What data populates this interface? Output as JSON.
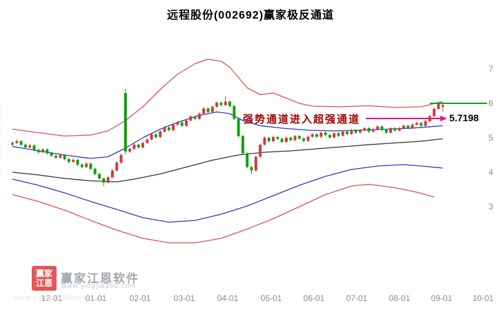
{
  "title": "远程股份(002692)赢家极反通道",
  "watermark": {
    "brand": "赢家江恩软件",
    "url": "www.yingjia360.com",
    "logo_line1": "赢家",
    "logo_line2": "江恩"
  },
  "chart_data": {
    "type": "candlestick",
    "title": "远程股份(002692)赢家极反通道",
    "y_axis_side": "right",
    "y_ticks": [
      7,
      6,
      5,
      4,
      3
    ],
    "x_tick_labels": [
      "12-01",
      "01-01",
      "02-01",
      "03-01",
      "04-01",
      "05-01",
      "06-01",
      "07-01",
      "08-01",
      "09-01",
      "10-01"
    ],
    "colors": {
      "up": "#d43a3a",
      "down": "#0da10d"
    },
    "candles_ohlc": [
      [
        4.8,
        4.9,
        4.76,
        4.85
      ],
      [
        4.85,
        4.95,
        4.82,
        4.9
      ],
      [
        4.9,
        4.93,
        4.76,
        4.8
      ],
      [
        4.8,
        4.84,
        4.68,
        4.72
      ],
      [
        4.72,
        4.82,
        4.69,
        4.78
      ],
      [
        4.78,
        4.81,
        4.61,
        4.65
      ],
      [
        4.65,
        4.69,
        4.54,
        4.58
      ],
      [
        4.58,
        4.7,
        4.55,
        4.66
      ],
      [
        4.66,
        4.69,
        4.51,
        4.55
      ],
      [
        4.55,
        4.59,
        4.44,
        4.48
      ],
      [
        4.48,
        4.52,
        4.38,
        4.42
      ],
      [
        4.42,
        4.54,
        4.39,
        4.5
      ],
      [
        4.5,
        4.53,
        4.34,
        4.38
      ],
      [
        4.38,
        4.42,
        4.26,
        4.3
      ],
      [
        4.3,
        4.4,
        4.27,
        4.36
      ],
      [
        4.36,
        4.39,
        4.18,
        4.22
      ],
      [
        4.22,
        4.26,
        4.11,
        4.15
      ],
      [
        4.15,
        4.29,
        4.12,
        4.25
      ],
      [
        4.25,
        4.28,
        4.06,
        4.1
      ],
      [
        4.1,
        4.13,
        3.91,
        3.95
      ],
      [
        3.95,
        3.98,
        3.78,
        3.82
      ],
      [
        3.82,
        3.85,
        3.6,
        3.7
      ],
      [
        3.7,
        3.89,
        3.67,
        3.85
      ],
      [
        3.85,
        4.09,
        3.82,
        4.05
      ],
      [
        4.05,
        4.32,
        4.02,
        4.28
      ],
      [
        4.28,
        4.54,
        4.25,
        4.5
      ],
      [
        6.3,
        6.42,
        4.52,
        4.6
      ],
      [
        4.6,
        4.72,
        4.56,
        4.68
      ],
      [
        4.68,
        4.84,
        4.64,
        4.8
      ],
      [
        4.8,
        4.83,
        4.68,
        4.72
      ],
      [
        4.72,
        4.89,
        4.69,
        4.85
      ],
      [
        4.85,
        4.99,
        4.82,
        4.95
      ],
      [
        4.95,
        5.14,
        4.92,
        5.1
      ],
      [
        5.1,
        5.13,
        4.98,
        5.02
      ],
      [
        5.02,
        5.22,
        4.99,
        5.18
      ],
      [
        5.18,
        5.34,
        5.15,
        5.3
      ],
      [
        5.3,
        5.33,
        5.18,
        5.22
      ],
      [
        5.22,
        5.42,
        5.19,
        5.38
      ],
      [
        5.38,
        5.49,
        5.35,
        5.45
      ],
      [
        5.45,
        5.48,
        5.31,
        5.35
      ],
      [
        5.35,
        5.54,
        5.32,
        5.5
      ],
      [
        5.5,
        5.66,
        5.47,
        5.62
      ],
      [
        5.62,
        5.65,
        5.51,
        5.55
      ],
      [
        5.55,
        5.74,
        5.52,
        5.7
      ],
      [
        5.7,
        5.89,
        5.67,
        5.85
      ],
      [
        5.85,
        5.88,
        5.71,
        5.75
      ],
      [
        5.75,
        5.94,
        5.72,
        5.9
      ],
      [
        5.9,
        6.06,
        5.87,
        6.02
      ],
      [
        6.02,
        6.05,
        5.91,
        5.95
      ],
      [
        5.95,
        6.2,
        5.92,
        6.05
      ],
      [
        6.05,
        6.08,
        5.88,
        5.92
      ],
      [
        5.92,
        5.95,
        5.51,
        5.55
      ],
      [
        5.55,
        5.58,
        5.01,
        5.05
      ],
      [
        5.05,
        5.08,
        4.51,
        4.55
      ],
      [
        4.55,
        4.58,
        4.11,
        4.15
      ],
      [
        4.15,
        4.18,
        3.95,
        4.05
      ],
      [
        4.05,
        4.48,
        4.02,
        4.45
      ],
      [
        4.45,
        4.83,
        4.42,
        4.8
      ],
      [
        4.8,
        5.04,
        4.77,
        5.0
      ],
      [
        5.0,
        5.03,
        4.86,
        4.9
      ],
      [
        4.9,
        5.06,
        4.87,
        5.02
      ],
      [
        5.02,
        5.05,
        4.93,
        4.97
      ],
      [
        4.97,
        5.0,
        4.84,
        4.88
      ],
      [
        4.88,
        5.04,
        4.85,
        5.0
      ],
      [
        5.0,
        5.03,
        4.89,
        4.93
      ],
      [
        4.93,
        5.08,
        4.9,
        5.05
      ],
      [
        5.05,
        5.08,
        4.94,
        4.98
      ],
      [
        4.98,
        5.01,
        4.87,
        4.91
      ],
      [
        4.91,
        5.06,
        4.88,
        5.03
      ],
      [
        5.03,
        5.14,
        5.0,
        5.1
      ],
      [
        5.1,
        5.13,
        4.99,
        5.03
      ],
      [
        5.03,
        5.18,
        5.0,
        5.15
      ],
      [
        5.15,
        5.18,
        5.04,
        5.08
      ],
      [
        5.08,
        5.11,
        4.97,
        5.01
      ],
      [
        5.01,
        5.16,
        4.98,
        5.13
      ],
      [
        5.13,
        5.16,
        5.02,
        5.06
      ],
      [
        5.06,
        5.21,
        5.03,
        5.18
      ],
      [
        5.18,
        5.21,
        5.07,
        5.11
      ],
      [
        5.11,
        5.26,
        5.08,
        5.23
      ],
      [
        5.23,
        5.26,
        5.11,
        5.15
      ],
      [
        5.15,
        5.25,
        5.12,
        5.21
      ],
      [
        5.21,
        5.31,
        5.18,
        5.28
      ],
      [
        5.28,
        5.31,
        5.14,
        5.18
      ],
      [
        5.18,
        5.29,
        5.15,
        5.25
      ],
      [
        5.25,
        5.36,
        5.22,
        5.33
      ],
      [
        5.33,
        5.36,
        5.19,
        5.23
      ],
      [
        5.23,
        5.26,
        5.11,
        5.15
      ],
      [
        5.15,
        5.31,
        5.12,
        5.28
      ],
      [
        5.28,
        5.31,
        5.17,
        5.21
      ],
      [
        5.21,
        5.32,
        5.18,
        5.28
      ],
      [
        5.28,
        5.39,
        5.25,
        5.35
      ],
      [
        5.35,
        5.38,
        5.25,
        5.29
      ],
      [
        5.29,
        5.42,
        5.26,
        5.38
      ],
      [
        5.38,
        5.47,
        5.35,
        5.43
      ],
      [
        5.43,
        5.46,
        5.31,
        5.35
      ],
      [
        5.35,
        5.52,
        5.32,
        5.48
      ],
      [
        5.48,
        5.67,
        5.45,
        5.63
      ],
      [
        5.63,
        5.88,
        5.6,
        5.84
      ],
      [
        5.84,
        6.05,
        5.81,
        6.0
      ],
      [
        5.9,
        6.02,
        5.76,
        5.95
      ]
    ],
    "series": [
      {
        "name": "outer-upper-red-band",
        "color": "#e05050",
        "points": [
          [
            0,
            5.25
          ],
          [
            6,
            5.15
          ],
          [
            12,
            5.05
          ],
          [
            18,
            5.08
          ],
          [
            22,
            5.2
          ],
          [
            26,
            5.5
          ],
          [
            30,
            5.9
          ],
          [
            34,
            6.4
          ],
          [
            38,
            6.85
          ],
          [
            42,
            7.15
          ],
          [
            45,
            7.28
          ],
          [
            48,
            7.22
          ],
          [
            50,
            7.05
          ],
          [
            52,
            6.75
          ],
          [
            54,
            6.45
          ],
          [
            57,
            6.25
          ],
          [
            60,
            6.3
          ],
          [
            63,
            6.15
          ],
          [
            66,
            6.0
          ],
          [
            69,
            5.92
          ],
          [
            75,
            5.9
          ],
          [
            82,
            5.93
          ],
          [
            88,
            5.88
          ],
          [
            94,
            5.9
          ],
          [
            99,
            6.05
          ]
        ]
      },
      {
        "name": "inner-upper-blue-line",
        "color": "#3434cc",
        "points": [
          [
            0,
            4.75
          ],
          [
            6,
            4.62
          ],
          [
            12,
            4.5
          ],
          [
            18,
            4.4
          ],
          [
            22,
            4.45
          ],
          [
            26,
            4.7
          ],
          [
            30,
            5.0
          ],
          [
            34,
            5.25
          ],
          [
            38,
            5.45
          ],
          [
            43,
            5.65
          ],
          [
            47,
            5.75
          ],
          [
            50,
            5.7
          ],
          [
            53,
            5.5
          ],
          [
            57,
            5.35
          ],
          [
            62,
            5.28
          ],
          [
            68,
            5.22
          ],
          [
            74,
            5.2
          ],
          [
            80,
            5.22
          ],
          [
            86,
            5.25
          ],
          [
            92,
            5.28
          ],
          [
            99,
            5.35
          ]
        ]
      },
      {
        "name": "middle-black-line",
        "color": "#333333",
        "points": [
          [
            0,
            4.0
          ],
          [
            6,
            3.92
          ],
          [
            12,
            3.82
          ],
          [
            18,
            3.75
          ],
          [
            24,
            3.72
          ],
          [
            28,
            3.8
          ],
          [
            34,
            3.95
          ],
          [
            40,
            4.15
          ],
          [
            46,
            4.35
          ],
          [
            52,
            4.5
          ],
          [
            58,
            4.58
          ],
          [
            64,
            4.62
          ],
          [
            70,
            4.68
          ],
          [
            76,
            4.74
          ],
          [
            82,
            4.8
          ],
          [
            88,
            4.85
          ],
          [
            94,
            4.9
          ],
          [
            99,
            4.97
          ]
        ]
      },
      {
        "name": "inner-lower-blue-line",
        "color": "#3434cc",
        "points": [
          [
            0,
            3.8
          ],
          [
            6,
            3.62
          ],
          [
            12,
            3.4
          ],
          [
            18,
            3.15
          ],
          [
            24,
            2.92
          ],
          [
            30,
            2.68
          ],
          [
            36,
            2.55
          ],
          [
            42,
            2.6
          ],
          [
            48,
            2.78
          ],
          [
            54,
            3.02
          ],
          [
            60,
            3.32
          ],
          [
            66,
            3.62
          ],
          [
            72,
            3.88
          ],
          [
            78,
            4.08
          ],
          [
            84,
            4.18
          ],
          [
            90,
            4.22
          ],
          [
            95,
            4.17
          ],
          [
            99,
            4.12
          ]
        ]
      },
      {
        "name": "outer-lower-red-band",
        "color": "#e05050",
        "points": [
          [
            0,
            3.35
          ],
          [
            6,
            3.15
          ],
          [
            12,
            2.9
          ],
          [
            18,
            2.6
          ],
          [
            24,
            2.32
          ],
          [
            30,
            2.08
          ],
          [
            36,
            1.95
          ],
          [
            42,
            1.95
          ],
          [
            48,
            2.08
          ],
          [
            54,
            2.35
          ],
          [
            60,
            2.65
          ],
          [
            66,
            3.0
          ],
          [
            72,
            3.35
          ],
          [
            78,
            3.6
          ],
          [
            82,
            3.65
          ],
          [
            88,
            3.55
          ],
          [
            93,
            3.42
          ],
          [
            97,
            3.28
          ]
        ]
      }
    ],
    "markers": {
      "horizontal_level": {
        "value": 6.0,
        "color": "#00aa22",
        "from_x_index": 96
      },
      "callout": {
        "text": "强势通道进入超强通道",
        "price_label": "5.7198",
        "value": 5.56,
        "color": "#ec0f8c"
      }
    }
  }
}
